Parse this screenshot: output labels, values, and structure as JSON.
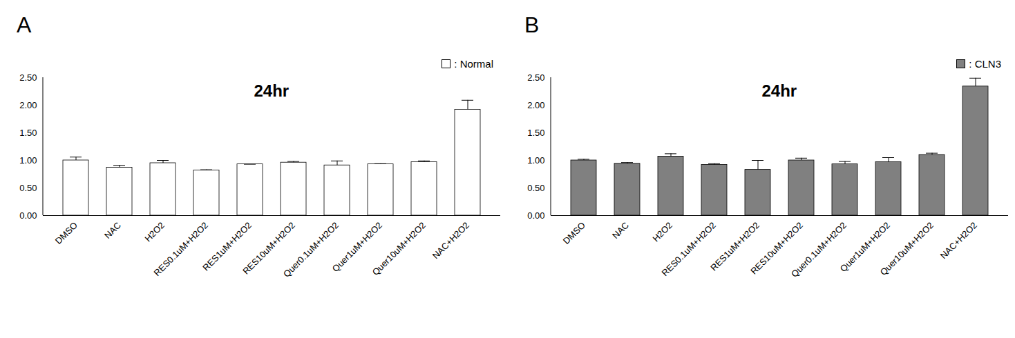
{
  "chart_data": [
    {
      "type": "bar",
      "panel_label": "A",
      "title": "24hr",
      "categories": [
        "DMSO",
        "NAC",
        "H2O2",
        "RES0.1uM+H2O2",
        "RES1uM+H2O2",
        "RES10uM+H2O2",
        "Quer0.1uM+H2O2",
        "Quer1uM+H2O2",
        "Quer10uM+H2O2",
        "NAC+H2O2"
      ],
      "series": [
        {
          "name": ": Normal",
          "color": "#ffffff",
          "values": [
            1.0,
            0.87,
            0.95,
            0.82,
            0.93,
            0.96,
            0.91,
            0.93,
            0.97,
            1.92
          ],
          "errors": [
            0.06,
            0.04,
            0.05,
            0.01,
            0.0,
            0.02,
            0.08,
            0.01,
            0.02,
            0.17
          ]
        }
      ],
      "ylim": [
        0,
        2.5
      ],
      "yticks": [
        {
          "value": 0,
          "label": "0.00"
        },
        {
          "value": 0.5,
          "label": "0.50"
        },
        {
          "value": 1,
          "label": "1.00"
        },
        {
          "value": 1.5,
          "label": "1.50"
        },
        {
          "value": 2,
          "label": "2.00"
        },
        {
          "value": 2.5,
          "label": "2.50"
        }
      ],
      "legend": "top-right",
      "grid": false
    },
    {
      "type": "bar",
      "panel_label": "B",
      "title": "24hr",
      "categories": [
        "DMSO",
        "NAC",
        "H2O2",
        "RES0.1uM+H2O2",
        "RES1uM+H2O2",
        "RES10uM+H2O2",
        "Quer0.1uM+H2O2",
        "Quer1uM+H2O2",
        "Quer10uM+H2O2",
        "NAC+H2O2"
      ],
      "series": [
        {
          "name": ": CLN3",
          "color": "#808080",
          "values": [
            1.0,
            0.94,
            1.07,
            0.92,
            0.83,
            1.0,
            0.93,
            0.97,
            1.1,
            2.34
          ],
          "errors": [
            0.02,
            0.02,
            0.05,
            0.02,
            0.17,
            0.04,
            0.05,
            0.08,
            0.03,
            0.15
          ]
        }
      ],
      "ylim": [
        0,
        2.5
      ],
      "yticks": [
        {
          "value": 0,
          "label": "0.00"
        },
        {
          "value": 0.5,
          "label": "0.50"
        },
        {
          "value": 1,
          "label": "1.00"
        },
        {
          "value": 1.5,
          "label": "1.50"
        },
        {
          "value": 2,
          "label": "2.00"
        },
        {
          "value": 2.5,
          "label": "2.50"
        }
      ],
      "legend": "top-right",
      "grid": false
    }
  ]
}
